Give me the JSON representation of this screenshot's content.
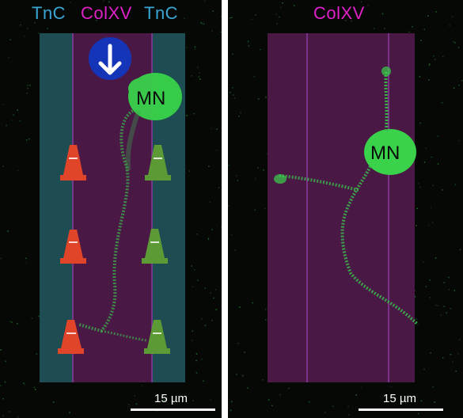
{
  "left_panel": {
    "labels": {
      "tnc_left": "TnC",
      "colxv": "ColXV",
      "tnc_right": "TnC"
    },
    "neuron_label": "MN",
    "scale_bar_text": "15 µm",
    "direction_icon": "arrow-down-circle",
    "cone_icons": [
      "cone-red",
      "cone-green"
    ]
  },
  "right_panel": {
    "label": "ColXV",
    "neuron_label": "MN",
    "scale_bar_text": "15 µm"
  },
  "colors": {
    "tnc": "#3aa6d6",
    "colxv": "#e020c8",
    "tnc_stripe": "#1d4c52",
    "colxv_stripe": "#4a1845",
    "neuron_green": "#39d24a",
    "cone_red": "#e0452a",
    "cone_green": "#5c9a35",
    "arrow_circle": "#1535b8"
  }
}
